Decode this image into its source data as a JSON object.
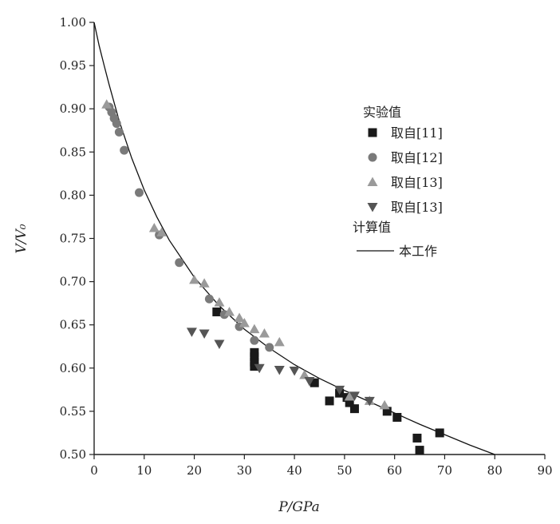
{
  "chart_data": {
    "type": "scatter",
    "title": "",
    "xlabel": "P/GPa",
    "ylabel": "V/V₀",
    "xlim": [
      0,
      90
    ],
    "ylim": [
      0.5,
      1.0
    ],
    "x_ticks": [
      0,
      10,
      20,
      30,
      40,
      50,
      60,
      70,
      80,
      90
    ],
    "x_tick_labels": [
      "0",
      "10",
      "20",
      "30",
      "40",
      "50",
      "60",
      "70",
      "80",
      "90"
    ],
    "y_ticks": [
      0.5,
      0.55,
      0.6,
      0.65,
      0.7,
      0.75,
      0.8,
      0.85,
      0.9,
      0.95,
      1.0
    ],
    "y_tick_labels": [
      "0.50",
      "0.55",
      "0.60",
      "0.65",
      "0.70",
      "0.75",
      "0.80",
      "0.85",
      "0.90",
      "0.95",
      "1.00"
    ],
    "grid": false,
    "legend_position": "right",
    "legend_title_experimental": "实验值",
    "legend_title_calculated": "计算值",
    "series": [
      {
        "name": "取自[11]",
        "marker": "square",
        "color": "#1a1a1a",
        "points": [
          [
            24.5,
            0.665
          ],
          [
            32,
            0.618
          ],
          [
            32,
            0.613
          ],
          [
            32,
            0.607
          ],
          [
            32,
            0.602
          ],
          [
            44,
            0.583
          ],
          [
            47,
            0.562
          ],
          [
            49,
            0.571
          ],
          [
            50.5,
            0.566
          ],
          [
            51,
            0.56
          ],
          [
            52,
            0.553
          ],
          [
            58.5,
            0.55
          ],
          [
            60.5,
            0.543
          ],
          [
            64.5,
            0.519
          ],
          [
            65,
            0.505
          ],
          [
            69,
            0.525
          ]
        ]
      },
      {
        "name": "取自[12]",
        "marker": "circle",
        "color": "#7a7a7a",
        "points": [
          [
            3,
            0.902
          ],
          [
            3.5,
            0.896
          ],
          [
            4,
            0.889
          ],
          [
            4.5,
            0.883
          ],
          [
            5,
            0.873
          ],
          [
            6,
            0.852
          ],
          [
            9,
            0.803
          ],
          [
            13,
            0.754
          ],
          [
            17,
            0.722
          ],
          [
            23,
            0.68
          ],
          [
            26,
            0.662
          ],
          [
            29,
            0.648
          ],
          [
            32,
            0.632
          ],
          [
            35,
            0.624
          ]
        ]
      },
      {
        "name": "取自[13]",
        "marker": "triangle-up",
        "color": "#9a9a9a",
        "points": [
          [
            2.5,
            0.905
          ],
          [
            12,
            0.762
          ],
          [
            13.5,
            0.757
          ],
          [
            20,
            0.702
          ],
          [
            22,
            0.698
          ],
          [
            25,
            0.676
          ],
          [
            27,
            0.665
          ],
          [
            29,
            0.658
          ],
          [
            30,
            0.652
          ],
          [
            32,
            0.645
          ],
          [
            34,
            0.64
          ],
          [
            37,
            0.63
          ],
          [
            42,
            0.592
          ],
          [
            51,
            0.567
          ],
          [
            55,
            0.562
          ],
          [
            58,
            0.557
          ]
        ]
      },
      {
        "name": "取自[13]",
        "marker": "triangle-down",
        "color": "#555555",
        "points": [
          [
            19.5,
            0.642
          ],
          [
            22,
            0.64
          ],
          [
            25,
            0.628
          ],
          [
            33,
            0.6
          ],
          [
            37,
            0.598
          ],
          [
            40,
            0.597
          ],
          [
            43,
            0.585
          ],
          [
            49,
            0.575
          ],
          [
            52,
            0.568
          ],
          [
            55,
            0.562
          ]
        ]
      }
    ],
    "fit_line": {
      "name": "本工作",
      "points": [
        [
          0,
          1.0
        ],
        [
          1,
          0.973
        ],
        [
          2,
          0.95
        ],
        [
          3,
          0.928
        ],
        [
          5,
          0.886
        ],
        [
          7.5,
          0.843
        ],
        [
          10,
          0.806
        ],
        [
          12.5,
          0.775
        ],
        [
          15,
          0.748
        ],
        [
          20,
          0.705
        ],
        [
          25,
          0.672
        ],
        [
          30,
          0.645
        ],
        [
          35,
          0.623
        ],
        [
          40,
          0.604
        ],
        [
          45,
          0.588
        ],
        [
          50,
          0.574
        ],
        [
          55,
          0.561
        ],
        [
          60,
          0.548
        ],
        [
          65,
          0.535
        ],
        [
          70,
          0.523
        ],
        [
          75,
          0.511
        ],
        [
          80,
          0.5
        ]
      ]
    }
  }
}
